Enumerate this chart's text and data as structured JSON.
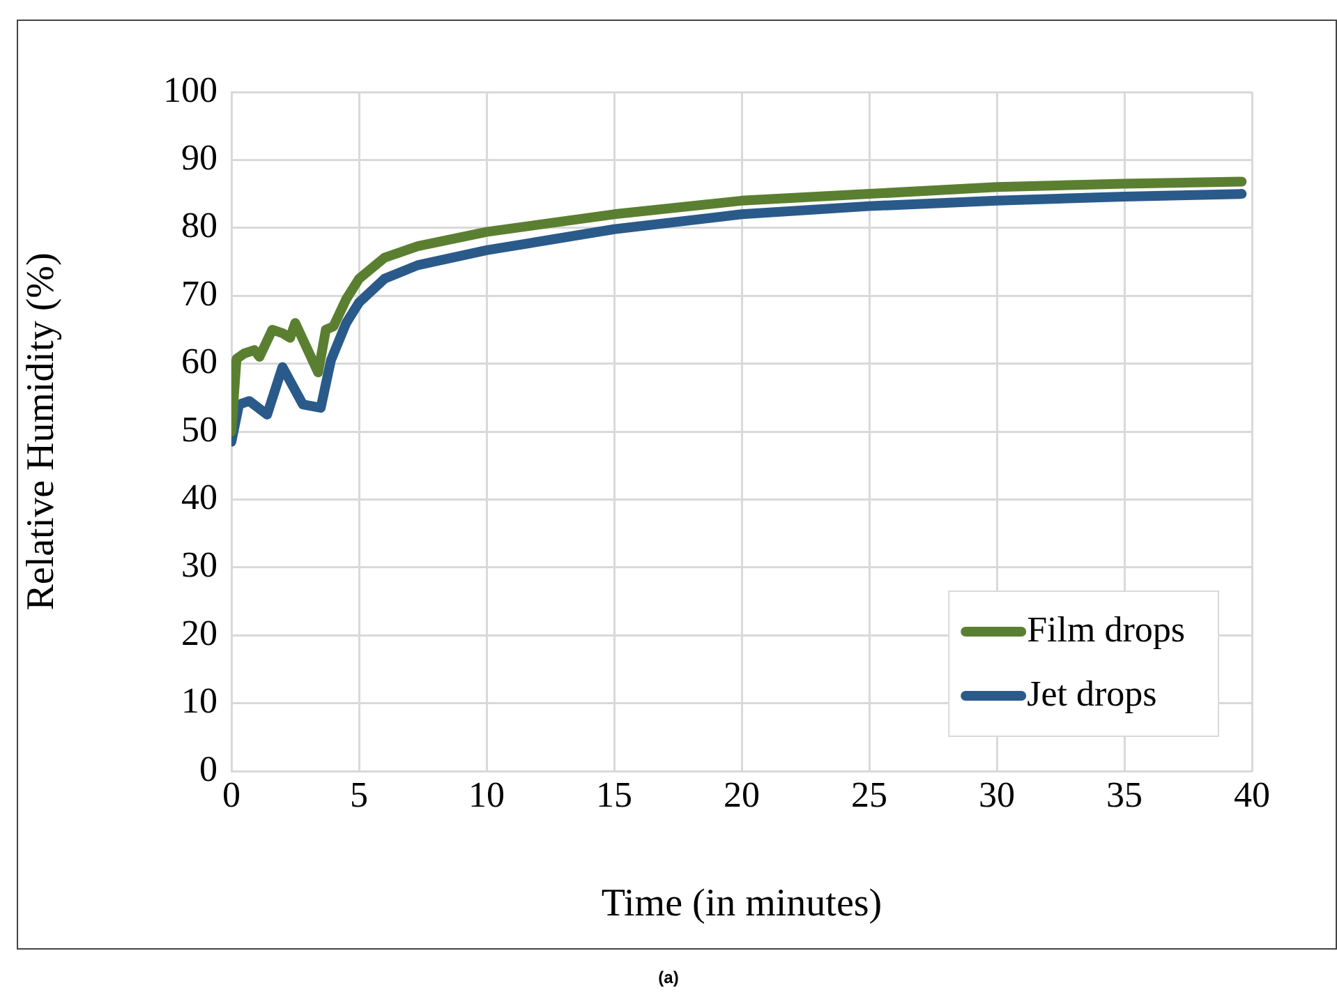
{
  "chart_data": {
    "type": "line",
    "xlabel": "Time (in minutes)",
    "ylabel": "Relative Humidity (%)",
    "annotations": [
      "(a)"
    ],
    "xlim": [
      0,
      40
    ],
    "xticks": [
      0,
      5,
      10,
      15,
      20,
      25,
      30,
      35,
      40
    ],
    "ylim": [
      0,
      100
    ],
    "yticks": [
      0,
      10,
      20,
      30,
      40,
      50,
      60,
      70,
      80,
      90,
      100
    ],
    "grid": true,
    "legend": "bottom right",
    "marker": "none",
    "line_style": "solid",
    "series": [
      {
        "name": "Film drops",
        "color": "#5b7f31",
        "x": [
          0,
          0.2,
          0.5,
          0.9,
          1.1,
          1.6,
          2.0,
          2.3,
          2.5,
          3.4,
          3.7,
          4.0,
          4.5,
          5,
          6,
          7.3,
          10,
          15,
          20,
          25,
          30,
          35,
          39.6
        ],
        "values": [
          50,
          60.7,
          61.5,
          62,
          61,
          65,
          64.5,
          63.8,
          66,
          58.7,
          65,
          65.5,
          69.5,
          72.5,
          75.6,
          77.3,
          79.4,
          82,
          84,
          85,
          86,
          86.5,
          86.8
        ]
      },
      {
        "name": "Jet drops",
        "color": "#2a5a8a",
        "x": [
          0,
          0.3,
          0.7,
          1.4,
          2.0,
          2.8,
          3.5,
          3.9,
          4.5,
          5,
          6,
          7.3,
          10,
          15,
          20,
          25,
          30,
          35,
          39.6
        ],
        "values": [
          48.5,
          54,
          54.5,
          52.5,
          59.5,
          54,
          53.5,
          60.5,
          66,
          69,
          72.5,
          74.5,
          76.7,
          79.8,
          82,
          83.2,
          84,
          84.6,
          85
        ]
      }
    ]
  }
}
